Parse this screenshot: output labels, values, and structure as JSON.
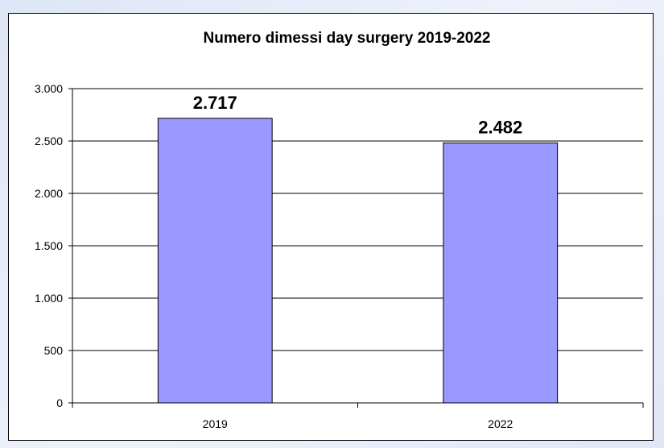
{
  "chart_data": {
    "type": "bar",
    "title": "Numero dimessi day surgery 2019-2022",
    "categories": [
      "2019",
      "2022"
    ],
    "values": [
      2717,
      2482
    ],
    "value_labels": [
      "2.717",
      "2.482"
    ],
    "yticks": [
      0,
      500,
      1000,
      1500,
      2000,
      2500,
      3000
    ],
    "ytick_labels": [
      "0",
      "500",
      "1.000",
      "1.500",
      "2.000",
      "2.500",
      "3.000"
    ],
    "ylim": [
      0,
      3000
    ],
    "xlabel": "",
    "ylabel": "",
    "grid": true,
    "legend": "none",
    "bar_color": "#9999ff",
    "bar_stroke": "#000000"
  }
}
